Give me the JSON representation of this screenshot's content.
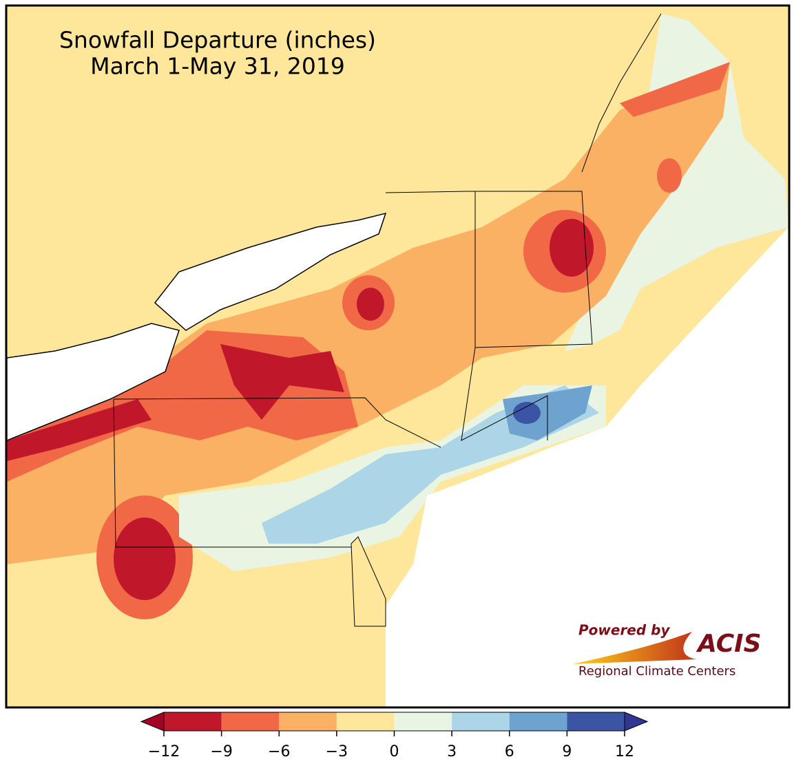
{
  "map": {
    "title": [
      "Snowfall Departure (inches)",
      "March 1-May 31, 2019"
    ],
    "colorbar": {
      "ticks": [
        {
          "value": -12,
          "label": "−12"
        },
        {
          "value": -9,
          "label": "−9"
        },
        {
          "value": -6,
          "label": "−6"
        },
        {
          "value": -3,
          "label": "−3"
        },
        0,
        3,
        6,
        9,
        12
      ],
      "colors": [
        "#c0172b",
        "#f06846",
        "#fbb163",
        "#fee69a",
        "#eaf4e3",
        "#acd6e7",
        "#6ea3cf",
        "#3b54a4"
      ],
      "under_color": "#a50026",
      "over_color": "#313695"
    },
    "logo": {
      "powered": "Powered by",
      "brand": "ACIS",
      "network": "Regional Climate Centers"
    }
  }
}
